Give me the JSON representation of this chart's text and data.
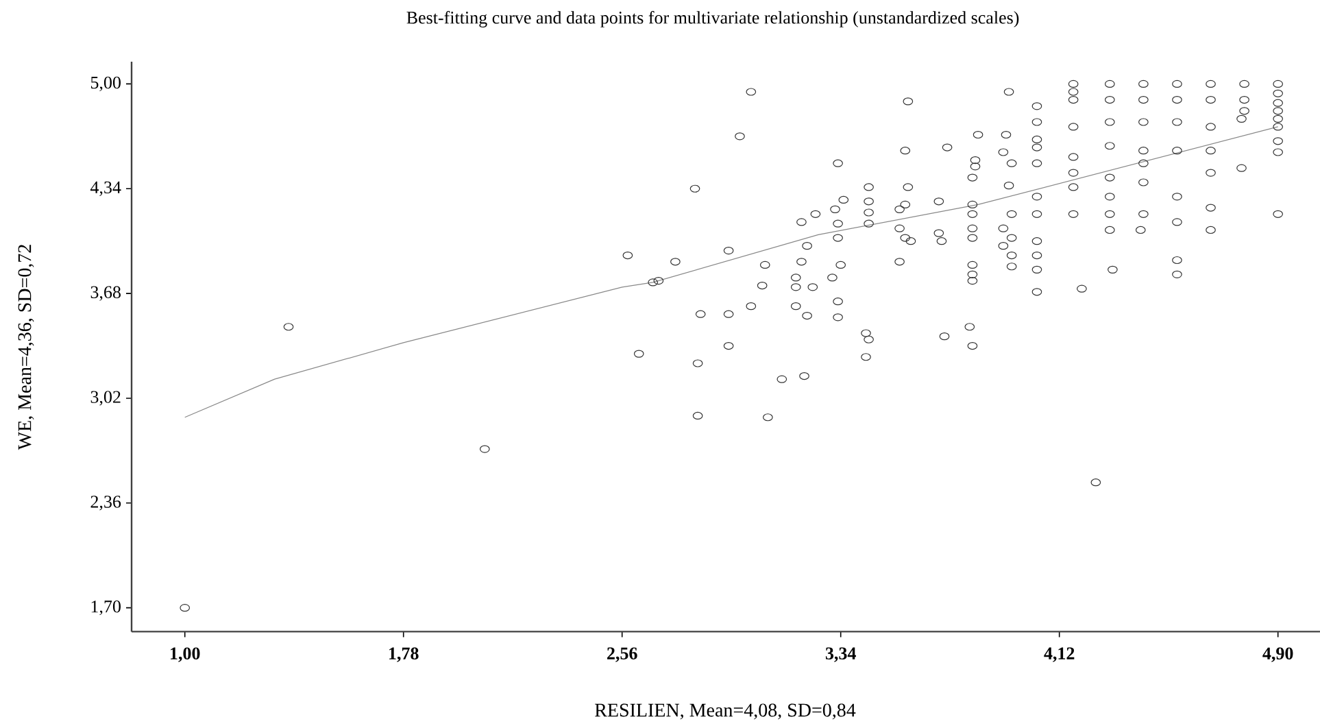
{
  "chart_data": {
    "type": "scatter",
    "title": "Best-fitting curve and data points for multivariate relationship (unstandardized scales)",
    "xlabel": "RESILIEN, Mean=4,08, SD=0,84",
    "ylabel": "WE, Mean=4,36, SD=0,72",
    "xlim": [
      0.81,
      5.05
    ],
    "ylim": [
      1.55,
      5.14
    ],
    "xticks": [
      {
        "value": 1.0,
        "label": "1,00"
      },
      {
        "value": 1.78,
        "label": "1,78"
      },
      {
        "value": 2.56,
        "label": "2,56"
      },
      {
        "value": 3.34,
        "label": "3,34"
      },
      {
        "value": 4.12,
        "label": "4,12"
      },
      {
        "value": 4.9,
        "label": "4,90"
      }
    ],
    "yticks": [
      {
        "value": 1.7,
        "label": "1,70"
      },
      {
        "value": 2.36,
        "label": "2,36"
      },
      {
        "value": 3.02,
        "label": "3,02"
      },
      {
        "value": 3.68,
        "label": "3,68"
      },
      {
        "value": 4.34,
        "label": "4,34"
      },
      {
        "value": 5.0,
        "label": "5,00"
      }
    ],
    "grid": false,
    "marker": "circle",
    "series": [
      {
        "color": "#333333",
        "x": [
          3.02,
          3.58,
          2.98,
          3.33,
          2.82,
          3.94,
          4.04,
          4.17,
          4.17,
          4.17,
          4.3,
          4.3,
          4.42,
          4.42,
          4.54,
          4.54,
          4.66,
          4.66,
          4.78,
          4.78,
          4.78,
          4.9,
          4.9,
          4.9,
          4.9,
          4.9,
          4.9,
          4.9,
          4.9,
          4.9,
          3.83,
          3.93,
          3.57,
          3.72,
          3.82,
          3.82,
          3.92,
          3.95,
          4.04,
          4.04,
          4.04,
          4.04,
          4.17,
          4.17,
          4.17,
          4.17,
          4.17,
          4.3,
          4.3,
          4.3,
          4.3,
          4.3,
          4.3,
          4.42,
          4.42,
          4.42,
          4.42,
          4.42,
          4.54,
          4.54,
          4.54,
          4.54,
          4.54,
          4.54,
          4.66,
          4.66,
          4.66,
          4.66,
          4.66,
          4.77,
          4.77,
          4.41,
          4.31,
          4.2,
          4.04,
          3.94,
          3.95,
          3.95,
          3.95,
          3.95,
          3.92,
          3.92,
          4.04,
          4.04,
          4.04,
          4.04,
          4.04,
          3.81,
          3.81,
          3.81,
          3.81,
          3.81,
          3.81,
          3.81,
          3.69,
          3.69,
          3.7,
          3.55,
          3.55,
          3.57,
          3.59,
          3.55,
          3.58,
          3.57,
          3.44,
          3.44,
          3.44,
          3.44,
          3.35,
          3.32,
          3.33,
          3.33,
          3.25,
          3.2,
          3.22,
          3.2,
          3.18,
          3.18,
          3.24,
          3.18,
          3.22,
          3.31,
          3.34,
          3.33,
          3.33,
          3.07,
          3.06,
          2.94,
          2.75,
          2.69,
          2.84,
          2.94,
          3.02,
          2.94,
          2.83,
          3.13,
          3.21,
          3.43,
          3.44,
          3.43,
          3.71,
          3.8,
          3.81,
          3.81,
          2.58,
          2.67,
          1.37,
          2.62,
          2.07,
          1.0,
          2.83,
          3.08,
          4.25
        ],
        "values": [
          4.95,
          4.89,
          4.67,
          4.5,
          4.34,
          4.95,
          4.86,
          5.0,
          4.95,
          4.9,
          5.0,
          4.9,
          5.0,
          4.9,
          5.0,
          4.9,
          5.0,
          4.9,
          5.0,
          4.9,
          4.83,
          5.0,
          4.94,
          4.88,
          4.83,
          4.78,
          4.73,
          4.64,
          4.57,
          4.18,
          4.68,
          4.68,
          4.58,
          4.6,
          4.52,
          4.48,
          4.57,
          4.5,
          4.76,
          4.65,
          4.6,
          4.5,
          4.73,
          4.54,
          4.44,
          4.35,
          4.18,
          4.76,
          4.61,
          4.41,
          4.29,
          4.18,
          4.08,
          4.76,
          4.58,
          4.5,
          4.38,
          4.18,
          4.76,
          4.58,
          4.29,
          4.13,
          3.89,
          3.8,
          4.73,
          4.58,
          4.44,
          4.22,
          4.08,
          4.78,
          4.47,
          4.08,
          3.83,
          3.71,
          3.69,
          4.36,
          4.18,
          4.03,
          3.92,
          3.85,
          4.09,
          3.98,
          4.29,
          4.18,
          4.01,
          3.92,
          3.83,
          4.41,
          4.24,
          4.18,
          4.09,
          4.03,
          3.86,
          3.76,
          4.26,
          4.06,
          4.01,
          4.21,
          4.09,
          4.03,
          4.01,
          3.88,
          4.35,
          4.24,
          4.35,
          4.26,
          4.19,
          4.12,
          4.27,
          4.21,
          4.12,
          4.03,
          4.18,
          4.13,
          3.98,
          3.88,
          3.78,
          3.72,
          3.72,
          3.6,
          3.54,
          3.78,
          3.86,
          3.63,
          3.53,
          3.86,
          3.73,
          3.95,
          3.88,
          3.76,
          3.55,
          3.55,
          3.6,
          3.35,
          3.24,
          3.14,
          3.16,
          3.43,
          3.39,
          3.28,
          3.41,
          3.47,
          3.35,
          3.8,
          3.92,
          3.75,
          3.47,
          3.3,
          2.7,
          1.7,
          2.91,
          2.9,
          2.49
        ]
      },
      {
        "type": "line",
        "color": "#888888",
        "marker": "none",
        "x": [
          1.0,
          1.32,
          1.78,
          2.56,
          2.67,
          3.26,
          3.83,
          4.9
        ],
        "values": [
          2.9,
          3.14,
          3.37,
          3.72,
          3.75,
          4.05,
          4.24,
          4.73
        ]
      }
    ]
  }
}
